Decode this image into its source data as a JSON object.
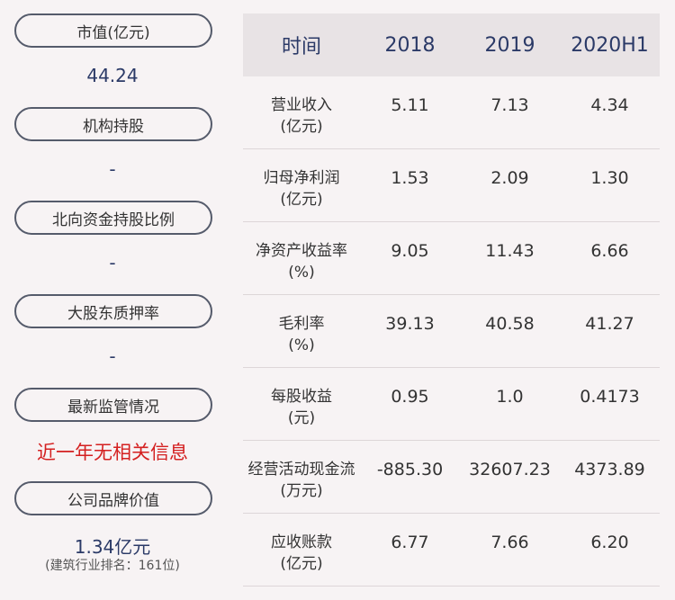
{
  "left_panel": {
    "market_cap": {
      "label": "市值(亿元)",
      "value": "44.24"
    },
    "institution": {
      "label": "机构持股",
      "value": "-"
    },
    "northbound": {
      "label": "北向资金持股比例",
      "value": "-"
    },
    "pledge": {
      "label": "大股东质押率",
      "value": "-"
    },
    "regulation": {
      "label": "最新监管情况",
      "value": "近一年无相关信息"
    },
    "brand": {
      "label": "公司品牌价值",
      "value": "1.34亿元",
      "note": "(建筑行业排名：161位)"
    }
  },
  "table": {
    "headers": [
      "时间",
      "2018",
      "2019",
      "2020H1"
    ],
    "rows": [
      {
        "label": "营业收入",
        "unit": "(亿元)",
        "values": [
          "5.11",
          "7.13",
          "4.34"
        ]
      },
      {
        "label": "归母净利润",
        "unit": "(亿元)",
        "values": [
          "1.53",
          "2.09",
          "1.30"
        ]
      },
      {
        "label": "净资产收益率",
        "unit": "(%)",
        "values": [
          "9.05",
          "11.43",
          "6.66"
        ]
      },
      {
        "label": "毛利率",
        "unit": "(%)",
        "values": [
          "39.13",
          "40.58",
          "41.27"
        ]
      },
      {
        "label": "每股收益",
        "unit": "(元)",
        "values": [
          "0.95",
          "1.0",
          "0.4173"
        ]
      },
      {
        "label": "经营活动现金流",
        "unit": "(万元)",
        "values": [
          "-885.30",
          "32607.23",
          "4373.89"
        ]
      },
      {
        "label": "应收账款",
        "unit": "(亿元)",
        "values": [
          "6.77",
          "7.66",
          "6.20"
        ]
      }
    ]
  },
  "colors": {
    "accent": "#2b3a67",
    "alert": "#d42020",
    "header_bg": "#e8e3e5",
    "page_bg": "#f7f3f4"
  }
}
